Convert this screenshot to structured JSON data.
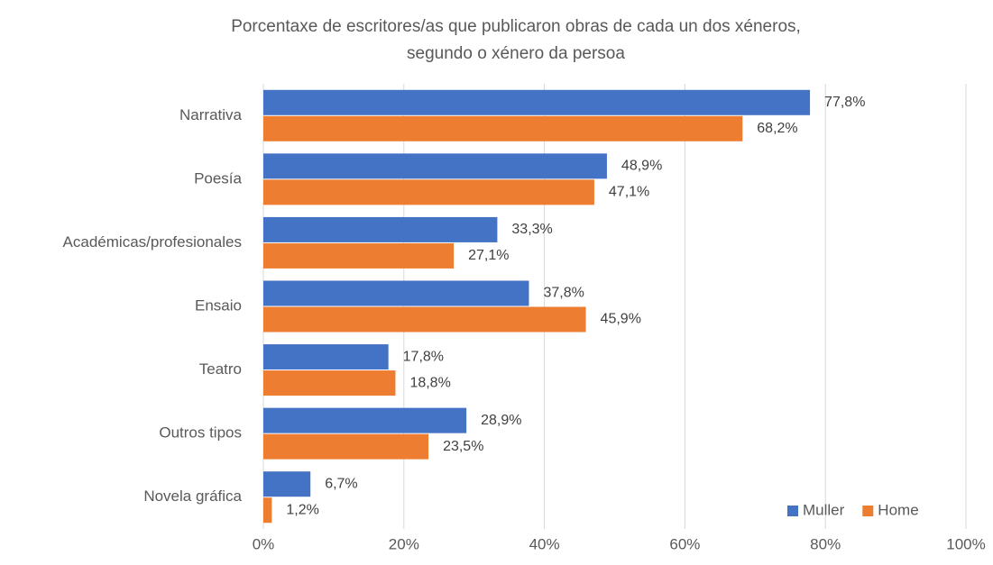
{
  "chart_data": {
    "type": "hbar",
    "title": [
      "Porcentaxe de escritores/as que publicaron obras de cada un dos xéneros,",
      "segundo o xénero da persoa"
    ],
    "categories": [
      "Narrativa",
      "Poesía",
      "Académicas/profesionales",
      "Ensaio",
      "Teatro",
      "Outros tipos",
      "Novela gráfica"
    ],
    "series": [
      {
        "name": "Muller",
        "color": "#4472c4",
        "values": [
          77.8,
          48.9,
          33.3,
          37.8,
          17.8,
          28.9,
          6.7
        ],
        "value_labels": [
          "77,8%",
          "48,9%",
          "33,3%",
          "37,8%",
          "17,8%",
          "28,9%",
          "6,7%"
        ]
      },
      {
        "name": "Home",
        "color": "#ed7d31",
        "values": [
          68.2,
          47.1,
          27.1,
          45.9,
          18.8,
          23.5,
          1.2
        ],
        "value_labels": [
          "68,2%",
          "47,1%",
          "27,1%",
          "45,9%",
          "18,8%",
          "23,5%",
          "1,2%"
        ]
      }
    ],
    "xlim": [
      0,
      100
    ],
    "xticks": [
      {
        "value": 0,
        "label": "0%"
      },
      {
        "value": 20,
        "label": "20%"
      },
      {
        "value": 40,
        "label": "40%"
      },
      {
        "value": 60,
        "label": "60%"
      },
      {
        "value": 80,
        "label": "80%"
      },
      {
        "value": 100,
        "label": "100%"
      }
    ],
    "grid": true,
    "legend": "lower right"
  }
}
